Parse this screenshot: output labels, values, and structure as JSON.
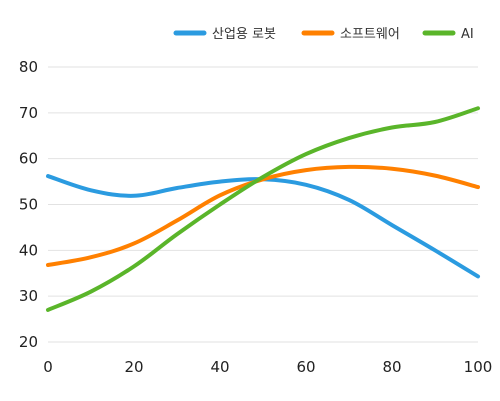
{
  "chart_data": {
    "type": "line",
    "title": "",
    "xlabel": "",
    "ylabel": "",
    "xlim": [
      0,
      100
    ],
    "ylim": [
      20,
      80
    ],
    "x_ticks": [
      0,
      20,
      40,
      60,
      80,
      100
    ],
    "y_ticks": [
      20,
      30,
      40,
      50,
      60,
      70,
      80
    ],
    "grid": "horizontal",
    "legend_position": "top-right",
    "x": [
      0,
      10,
      20,
      30,
      40,
      50,
      60,
      70,
      80,
      90,
      100
    ],
    "series": [
      {
        "name": "산업용 로봇",
        "color": "#2b9be0",
        "values": [
          56.2,
          53.1,
          51.9,
          53.6,
          55.0,
          55.5,
          54.3,
          51.0,
          45.5,
          40.0,
          34.3
        ]
      },
      {
        "name": "소프트웨어",
        "color": "#ff8000",
        "values": [
          36.8,
          38.5,
          41.5,
          46.5,
          52.0,
          55.5,
          57.5,
          58.2,
          57.8,
          56.3,
          53.8
        ]
      },
      {
        "name": "AI",
        "color": "#5ab52a",
        "values": [
          27.0,
          31.0,
          36.5,
          43.5,
          50.0,
          56.0,
          61.0,
          64.5,
          66.8,
          68.0,
          71.0
        ]
      }
    ]
  }
}
